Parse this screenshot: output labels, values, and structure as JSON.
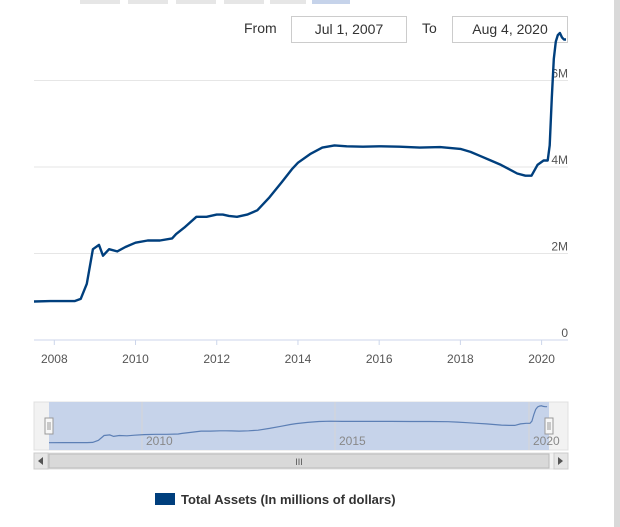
{
  "range_selector": {
    "from_label": "From",
    "from_value": "Jul 1, 2007",
    "to_label": "To",
    "to_value": "Aug 4, 2020"
  },
  "legend": {
    "label": "Total Assets (In millions of dollars)"
  },
  "colors": {
    "series": "#003f7d",
    "navigator_fill": "#c6d3ea",
    "scrollbar": "#d9d9d9",
    "grid": "#e6e6e6"
  },
  "navigator": {
    "tick_labels": [
      "2010",
      "2015",
      "2020"
    ],
    "scrollbar_grip": "III"
  },
  "chart_data": {
    "type": "line",
    "series": [
      {
        "name": "Total Assets (In millions of dollars)",
        "x": [
          2007.5,
          2007.9,
          2008.5,
          2008.65,
          2008.8,
          2008.95,
          2009.1,
          2009.2,
          2009.35,
          2009.55,
          2009.75,
          2010.0,
          2010.3,
          2010.6,
          2010.9,
          2011.0,
          2011.2,
          2011.5,
          2011.75,
          2012.0,
          2012.15,
          2012.3,
          2012.5,
          2012.75,
          2013.0,
          2013.3,
          2013.6,
          2013.85,
          2014.0,
          2014.3,
          2014.6,
          2014.9,
          2015.2,
          2015.6,
          2016.0,
          2016.5,
          2017.0,
          2017.5,
          2018.0,
          2018.25,
          2018.5,
          2018.75,
          2019.0,
          2019.2,
          2019.4,
          2019.6,
          2019.75,
          2019.9,
          2020.05,
          2020.15,
          2020.2,
          2020.25,
          2020.3,
          2020.35,
          2020.4,
          2020.45,
          2020.5,
          2020.55,
          2020.6
        ],
        "y": [
          0.89,
          0.9,
          0.9,
          0.95,
          1.3,
          2.1,
          2.2,
          1.95,
          2.1,
          2.05,
          2.15,
          2.25,
          2.3,
          2.3,
          2.35,
          2.45,
          2.6,
          2.85,
          2.85,
          2.9,
          2.9,
          2.87,
          2.85,
          2.9,
          3.0,
          3.3,
          3.65,
          3.95,
          4.1,
          4.3,
          4.45,
          4.5,
          4.48,
          4.47,
          4.48,
          4.47,
          4.45,
          4.46,
          4.42,
          4.35,
          4.25,
          4.15,
          4.05,
          3.95,
          3.85,
          3.8,
          3.8,
          4.05,
          4.15,
          4.15,
          4.5,
          5.6,
          6.5,
          6.9,
          7.05,
          7.1,
          7.0,
          6.95,
          6.95
        ]
      }
    ],
    "xlim": [
      2007.5,
      2020.65
    ],
    "ylim": [
      0,
      7.4
    ],
    "x_ticks": [
      "2008",
      "2010",
      "2012",
      "2014",
      "2016",
      "2018",
      "2020"
    ],
    "y_ticks": [
      "0",
      "2M",
      "4M",
      "6M"
    ],
    "grid": true,
    "legend_position": "bottom"
  }
}
